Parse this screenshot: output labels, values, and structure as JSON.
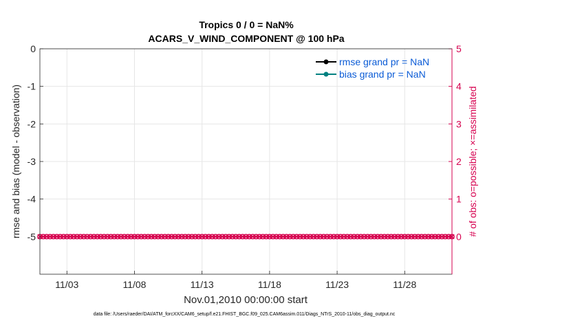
{
  "chart_data": {
    "type": "line",
    "title_line1": "Tropics 0 / 0 = NaN%",
    "title_line2": "ACARS_V_WIND_COMPONENT @ 100 hPa",
    "xlabel": "Nov.01,2010 00:00:00 start",
    "ylabel_left": "rmse and bias (model - observation)",
    "ylabel_right": "# of obs: o=possible; ×=assimilated",
    "x_range": [
      1,
      31.5
    ],
    "x_ticks": [
      {
        "value": 3,
        "label": "11/03"
      },
      {
        "value": 8,
        "label": "11/08"
      },
      {
        "value": 13,
        "label": "11/13"
      },
      {
        "value": 18,
        "label": "11/18"
      },
      {
        "value": 23,
        "label": "11/23"
      },
      {
        "value": 28,
        "label": "11/28"
      }
    ],
    "y_left_range": [
      -6,
      0
    ],
    "y_left_ticks": [
      {
        "value": 0,
        "label": "0"
      },
      {
        "value": -1,
        "label": "-1"
      },
      {
        "value": -2,
        "label": "-2"
      },
      {
        "value": -3,
        "label": "-3"
      },
      {
        "value": -4,
        "label": "-4"
      },
      {
        "value": -5,
        "label": "-5"
      }
    ],
    "y_right_range": [
      -1,
      5
    ],
    "y_right_ticks": [
      {
        "value": 0,
        "label": "0"
      },
      {
        "value": 1,
        "label": "1"
      },
      {
        "value": 2,
        "label": "2"
      },
      {
        "value": 3,
        "label": "3"
      },
      {
        "value": 4,
        "label": "4"
      },
      {
        "value": 5,
        "label": "5"
      }
    ],
    "grid": true,
    "legend_position": "top-right",
    "series": [
      {
        "name": "rmse grand pr = NaN",
        "color": "#000000",
        "values": []
      },
      {
        "name": "bias grand pr = NaN",
        "color": "#008080",
        "values": []
      },
      {
        "name": "obs possible",
        "color": "#d6004f",
        "axis": "right",
        "marker": "circle",
        "x_start": 1,
        "x_end": 31.5,
        "x_step": 0.25,
        "value": 0
      },
      {
        "name": "obs assimilated",
        "color": "#d6004f",
        "axis": "right",
        "marker": "x",
        "x_start": 1,
        "x_end": 31.5,
        "x_step": 0.25,
        "value": 0
      }
    ],
    "footer": "data file: /Users/raeder/DAI/ATM_forcXX/CAM6_setup/f.e21.FHIST_BGC.f09_025.CAM6assim.011/Diags_NTrS_2010-11/obs_diag_output.nc"
  },
  "colors": {
    "right_axis": "#d6004f",
    "legend_text": "#0a5bd6",
    "grid": "#e6e6e6"
  }
}
